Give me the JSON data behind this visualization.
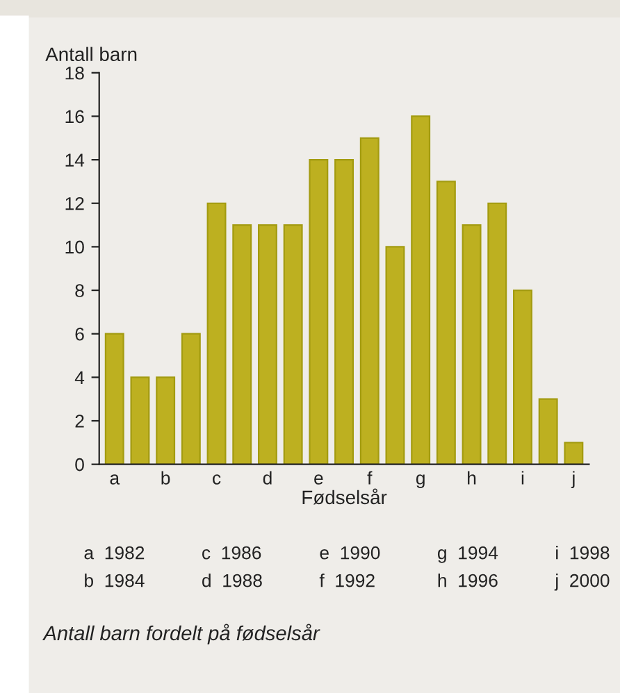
{
  "chart_data": {
    "type": "bar",
    "ylabel": "Antall barn",
    "xlabel": "Fødselsår",
    "categories": [
      "a",
      null,
      "b",
      null,
      "c",
      null,
      "d",
      null,
      "e",
      null,
      "f",
      null,
      "g",
      null,
      "h",
      null,
      "i",
      null,
      "j"
    ],
    "values": [
      6,
      4,
      4,
      6,
      12,
      11,
      11,
      11,
      14,
      14,
      15,
      10,
      16,
      13,
      11,
      12,
      8,
      3,
      1
    ],
    "color": "#bdb020",
    "ylim": [
      0,
      18
    ],
    "yticks": [
      0,
      2,
      4,
      6,
      8,
      10,
      12,
      14,
      16,
      18
    ],
    "grid": false,
    "annotations": [
      "a  1982",
      "b  1984",
      "c  1986",
      "d  1988",
      "e  1990",
      "f  1992",
      "g  1994",
      "h  1996",
      "i  1998",
      "j  2000",
      "Antall barn fordelt på fødselsår"
    ]
  }
}
